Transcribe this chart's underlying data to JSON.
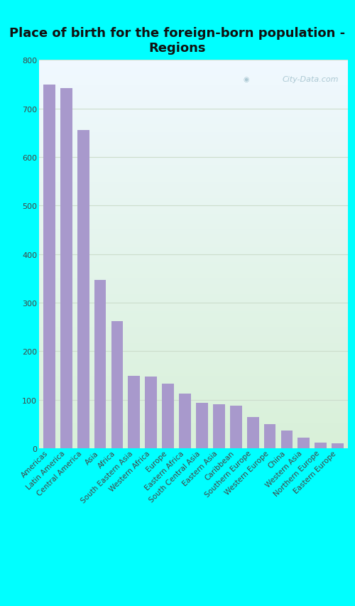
{
  "title": "Place of birth for the foreign-born population -\nRegions",
  "categories": [
    "Americas",
    "Latin America",
    "Central America",
    "Asia",
    "Africa",
    "South Eastern Asia",
    "Western Africa",
    "Europe",
    "Eastern Africa",
    "South Central Asia",
    "Eastern Asia",
    "Caribbean",
    "Southern Europe",
    "Western Europe",
    "China",
    "Western Asia",
    "Northern Europe",
    "Eastern Europe"
  ],
  "values": [
    750,
    742,
    655,
    347,
    262,
    149,
    148,
    133,
    112,
    93,
    90,
    88,
    65,
    50,
    37,
    22,
    12,
    10
  ],
  "bar_color": "#a899cc",
  "fig_bg_color": "#00ffff",
  "chart_bg_top": "#f0f8ff",
  "chart_bg_bottom": "#d8f0d8",
  "grid_color": "#ccddcc",
  "title_fontsize": 13,
  "tick_fontsize": 7.5,
  "ylim": [
    0,
    800
  ],
  "yticks": [
    0,
    100,
    200,
    300,
    400,
    500,
    600,
    700,
    800
  ],
  "watermark_text": "City-Data.com",
  "watermark_color": "#a0c0cc"
}
